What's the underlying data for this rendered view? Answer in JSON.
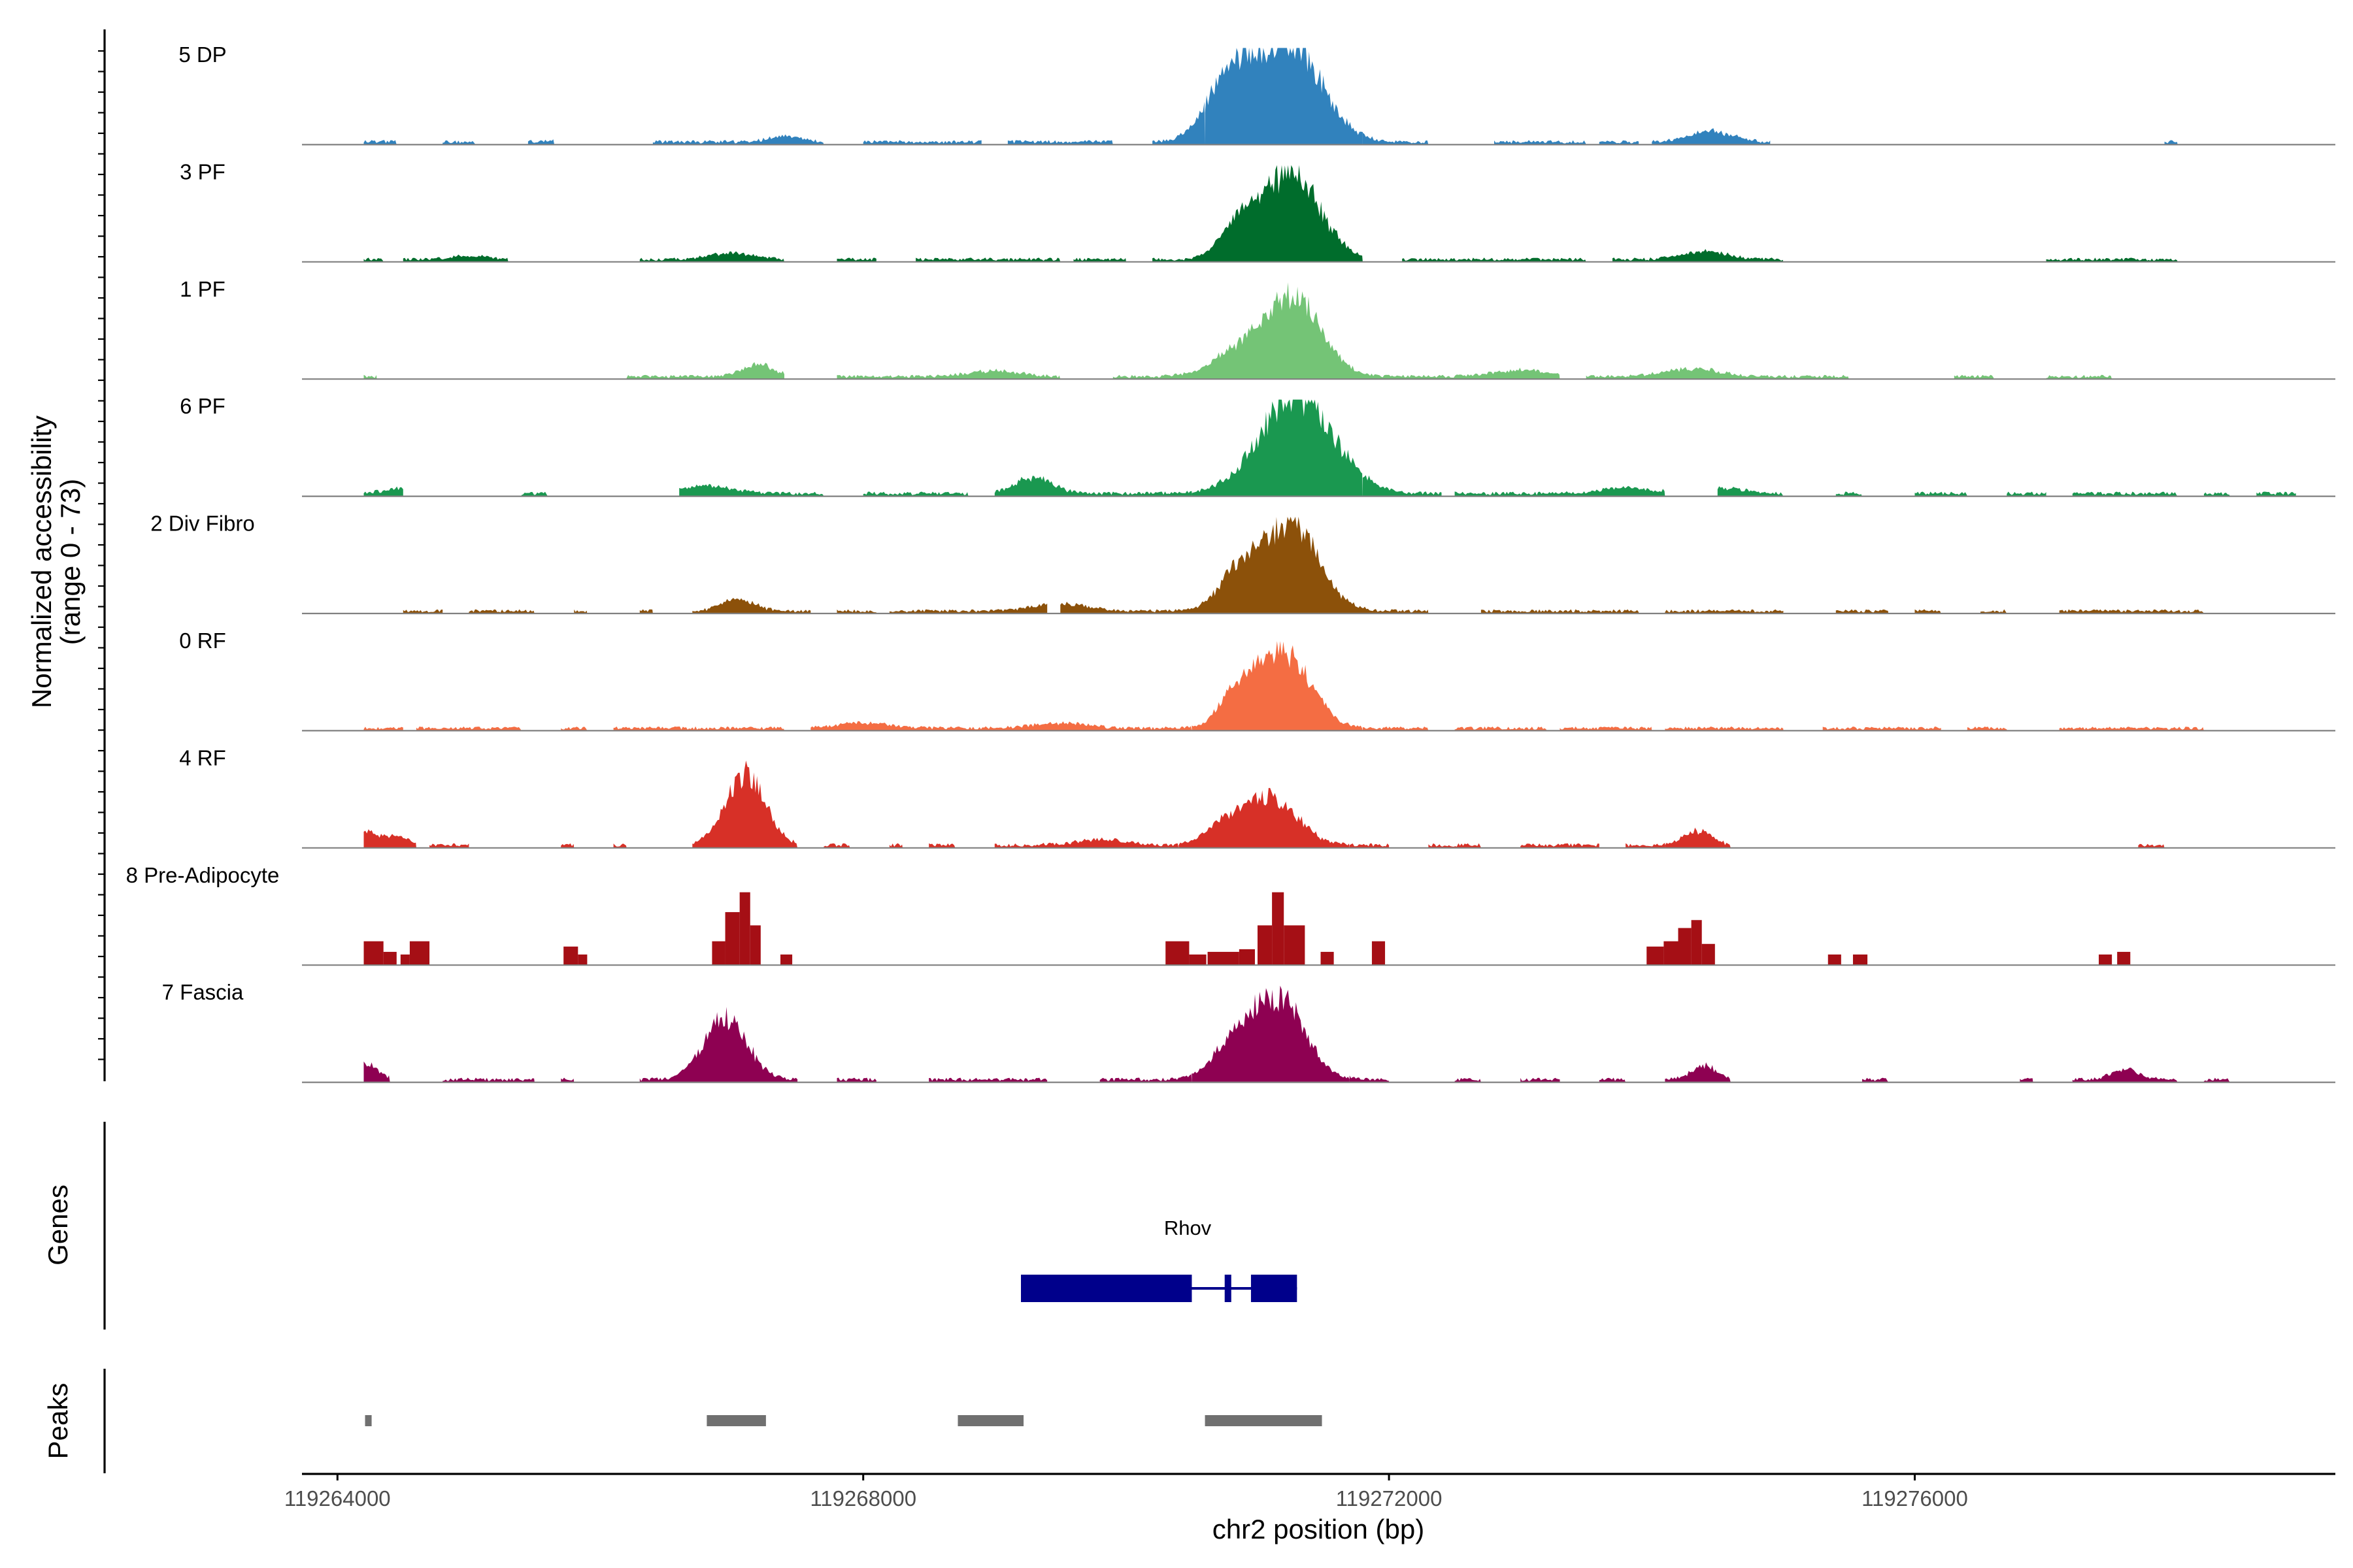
{
  "chart_data": {
    "type": "area",
    "title": "",
    "xlabel": "chr2 position (bp)",
    "ylabel_line1": "Normalized accessibility",
    "ylabel_line2": "(range 0 - 73)",
    "ylim": [
      0,
      73
    ],
    "xlim": [
      119263730,
      119279200
    ],
    "x_ticks": [
      119264000,
      119268000,
      119272000,
      119276000
    ],
    "x_tick_labels": [
      "119264000",
      "119268000",
      "119272000",
      "119276000"
    ],
    "grid": false,
    "tracks": [
      {
        "name": "5 DP",
        "color": "#3182BD",
        "peaks": [
          [
            119270800,
            119270500,
            48,
            180
          ],
          [
            119271250,
            119270950,
            73,
            240
          ],
          [
            119274450,
            119274150,
            8,
            160
          ],
          [
            119265750,
            119265500,
            3,
            100
          ],
          [
            119267400,
            119267000,
            4,
            120
          ]
        ],
        "noise": 2.2,
        "segments": [
          [
            119264200,
            119264450
          ],
          [
            119264800,
            119265050
          ],
          [
            119265450,
            119265650
          ],
          [
            119266400,
            119267700
          ],
          [
            119268000,
            119268900
          ],
          [
            119269100,
            119269900
          ],
          [
            119270200,
            119270600
          ],
          [
            119270600,
            119271800
          ],
          [
            119271800,
            119272300
          ],
          [
            119272800,
            119273500
          ],
          [
            119273600,
            119273900
          ],
          [
            119274000,
            119274900
          ],
          [
            119277900,
            119278000
          ]
        ]
      },
      {
        "name": "3 PF",
        "color": "#006D2C",
        "peaks": [
          [
            119270850,
            119270450,
            23,
            130
          ],
          [
            119271250,
            119270900,
            65,
            220
          ],
          [
            119274400,
            119274100,
            6,
            170
          ],
          [
            119267000,
            119266600,
            5,
            160
          ],
          [
            119265000,
            119264800,
            3,
            120
          ]
        ],
        "noise": 2,
        "segments": [
          [
            119264200,
            119264350
          ],
          [
            119264500,
            119265300
          ],
          [
            119266300,
            119267400
          ],
          [
            119267800,
            119268100
          ],
          [
            119268400,
            119269500
          ],
          [
            119269600,
            119270000
          ],
          [
            119270200,
            119271800
          ],
          [
            119272100,
            119273500
          ],
          [
            119273700,
            119275000
          ],
          [
            119277000,
            119278000
          ]
        ]
      },
      {
        "name": "1 PF",
        "color": "#74C476",
        "peaks": [
          [
            119270800,
            119270400,
            14,
            180
          ],
          [
            119271250,
            119270900,
            62,
            220
          ],
          [
            119267200,
            119266800,
            9,
            120
          ],
          [
            119274300,
            119273900,
            6,
            200
          ],
          [
            119273000,
            119272700,
            5,
            200
          ],
          [
            119269000,
            119268600,
            4,
            200
          ]
        ],
        "noise": 2,
        "segments": [
          [
            119264200,
            119264300
          ],
          [
            119266200,
            119267400
          ],
          [
            119267800,
            119269500
          ],
          [
            119269900,
            119273300
          ],
          [
            119273500,
            119275500
          ],
          [
            119276300,
            119276600
          ],
          [
            119277000,
            119277500
          ]
        ]
      },
      {
        "name": "6 PF",
        "color": "#1A9850",
        "peaks": [
          [
            119271300,
            119270700,
            73,
            280
          ],
          [
            119269300,
            119269000,
            12,
            140
          ],
          [
            119266800,
            119266300,
            6,
            200
          ],
          [
            119264500,
            119264200,
            4,
            140
          ],
          [
            119273800,
            119273300,
            4,
            200
          ],
          [
            119274500,
            119274200,
            4,
            200
          ]
        ],
        "noise": 2.2,
        "segments": [
          [
            119264200,
            119264500
          ],
          [
            119265400,
            119265600
          ],
          [
            119266600,
            119267700
          ],
          [
            119268000,
            119268800
          ],
          [
            119269000,
            119270500
          ],
          [
            119270500,
            119271800
          ],
          [
            119271800,
            119272400
          ],
          [
            119272500,
            119274100
          ],
          [
            119274500,
            119275000
          ],
          [
            119275400,
            119275600
          ],
          [
            119276000,
            119276400
          ],
          [
            119276700,
            119277000
          ],
          [
            119277200,
            119278000
          ],
          [
            119278200,
            119278400
          ],
          [
            119278600,
            119278900
          ]
        ]
      },
      {
        "name": "2 Div Fibro",
        "color": "#8C510A",
        "peaks": [
          [
            119270850,
            119270600,
            26,
            150
          ],
          [
            119271250,
            119271000,
            66,
            210
          ],
          [
            119267050,
            119266800,
            9,
            120
          ],
          [
            119269500,
            119269000,
            5,
            200
          ]
        ],
        "noise": 2,
        "segments": [
          [
            119264500,
            119264800
          ],
          [
            119265000,
            119265500
          ],
          [
            119265800,
            119265900
          ],
          [
            119266300,
            119266400
          ],
          [
            119266700,
            119267600
          ],
          [
            119267800,
            119268100
          ],
          [
            119268200,
            119269400
          ],
          [
            119269500,
            119272300
          ],
          [
            119272700,
            119273900
          ],
          [
            119274100,
            119275000
          ],
          [
            119275400,
            119275800
          ],
          [
            119276000,
            119276200
          ],
          [
            119276500,
            119276700
          ],
          [
            119277100,
            119278200
          ]
        ]
      },
      {
        "name": "0 RF",
        "color": "#F46D43",
        "peaks": [
          [
            119270850,
            119270600,
            26,
            130
          ],
          [
            119271200,
            119270950,
            56,
            200
          ],
          [
            119268000,
            119267700,
            4,
            200
          ],
          [
            119269500,
            119269000,
            4,
            200
          ]
        ],
        "noise": 2,
        "segments": [
          [
            119264200,
            119264500
          ],
          [
            119264600,
            119265400
          ],
          [
            119265700,
            119265900
          ],
          [
            119266100,
            119267400
          ],
          [
            119267600,
            119270500
          ],
          [
            119270500,
            119271800
          ],
          [
            119271800,
            119272300
          ],
          [
            119272500,
            119273200
          ],
          [
            119273300,
            119274000
          ],
          [
            119274100,
            119275000
          ],
          [
            119275300,
            119276200
          ],
          [
            119276400,
            119276700
          ],
          [
            119277100,
            119278200
          ]
        ]
      },
      {
        "name": "4 RF",
        "color": "#D73027",
        "peaks": [
          [
            119267100,
            119266800,
            53,
            150
          ],
          [
            119271100,
            119270850,
            36,
            200
          ],
          [
            119270750,
            119270500,
            14,
            150
          ],
          [
            119274350,
            119274150,
            11,
            100
          ],
          [
            119264200,
            119264100,
            10,
            100
          ],
          [
            119264450,
            119264350,
            6,
            100
          ],
          [
            119269800,
            119269500,
            4,
            200
          ]
        ],
        "noise": 2.2,
        "segments": [
          [
            119264200,
            119264600
          ],
          [
            119264700,
            119265000
          ],
          [
            119265700,
            119265800
          ],
          [
            119266100,
            119266200
          ],
          [
            119266700,
            119267500
          ],
          [
            119267700,
            119267900
          ],
          [
            119268200,
            119268300
          ],
          [
            119268500,
            119268700
          ],
          [
            119269000,
            119270400
          ],
          [
            119270400,
            119271700
          ],
          [
            119271700,
            119272000
          ],
          [
            119272300,
            119272700
          ],
          [
            119273000,
            119273600
          ],
          [
            119273800,
            119274100
          ],
          [
            119274100,
            119274600
          ],
          [
            119277700,
            119277900
          ]
        ]
      },
      {
        "name": "8 Pre-Adipocyte",
        "color": "#A50F15",
        "bars": [
          [
            119264200,
            119264350,
            18
          ],
          [
            119264350,
            119264450,
            10
          ],
          [
            119264480,
            119264550,
            8
          ],
          [
            119264550,
            119264700,
            18
          ],
          [
            119265720,
            119265830,
            14
          ],
          [
            119265830,
            119265900,
            8
          ],
          [
            119266850,
            119266950,
            18
          ],
          [
            119266950,
            119267060,
            40
          ],
          [
            119267060,
            119267140,
            55
          ],
          [
            119267140,
            119267220,
            30
          ],
          [
            119267370,
            119267460,
            8
          ],
          [
            119270300,
            119270480,
            18
          ],
          [
            119270480,
            119270610,
            8
          ],
          [
            119270620,
            119270860,
            10
          ],
          [
            119270860,
            119270980,
            12
          ],
          [
            119271000,
            119271110,
            30
          ],
          [
            119271110,
            119271200,
            55
          ],
          [
            119271200,
            119271360,
            30
          ],
          [
            119271480,
            119271580,
            10
          ],
          [
            119271870,
            119271970,
            18
          ],
          [
            119273960,
            119274090,
            14
          ],
          [
            119274090,
            119274200,
            18
          ],
          [
            119274200,
            119274300,
            28
          ],
          [
            119274300,
            119274380,
            34
          ],
          [
            119274380,
            119274480,
            16
          ],
          [
            119275340,
            119275440,
            8
          ],
          [
            119275530,
            119275640,
            8
          ],
          [
            119277400,
            119277500,
            8
          ],
          [
            119277540,
            119277640,
            10
          ]
        ]
      },
      {
        "name": "7 Fascia",
        "color": "#8E0152",
        "peaks": [
          [
            119266950,
            119266700,
            48,
            160
          ],
          [
            119271150,
            119270850,
            62,
            200
          ],
          [
            119270800,
            119270500,
            22,
            150
          ],
          [
            119274400,
            119274200,
            10,
            100
          ],
          [
            119277600,
            119277400,
            8,
            100
          ],
          [
            119264200,
            119264100,
            12,
            100
          ]
        ],
        "noise": 2.2,
        "segments": [
          [
            119264200,
            119264400
          ],
          [
            119264800,
            119265500
          ],
          [
            119265700,
            119265800
          ],
          [
            119266300,
            119267500
          ],
          [
            119267800,
            119268100
          ],
          [
            119268500,
            119269400
          ],
          [
            119269800,
            119270500
          ],
          [
            119270500,
            119271700
          ],
          [
            119271700,
            119272000
          ],
          [
            119272500,
            119272700
          ],
          [
            119273000,
            119273300
          ],
          [
            119273600,
            119273800
          ],
          [
            119274100,
            119274600
          ],
          [
            119275600,
            119275800
          ],
          [
            119276800,
            119276900
          ],
          [
            119277200,
            119278000
          ],
          [
            119278200,
            119278400
          ]
        ]
      }
    ],
    "genes": {
      "title": "Genes",
      "items": [
        {
          "name": "Rhov",
          "color": "#00008B",
          "exons": [
            [
              119269200,
              119270500
            ],
            [
              119270750,
              119270800
            ],
            [
              119270950,
              119271300
            ]
          ],
          "start": 119269200,
          "end": 119271300
        }
      ]
    },
    "peaks_track": {
      "title": "Peaks",
      "color": "#707070",
      "regions": [
        [
          119264210,
          119264260
        ],
        [
          119266810,
          119267260
        ],
        [
          119268720,
          119269220
        ],
        [
          119270600,
          119271490
        ]
      ]
    }
  }
}
